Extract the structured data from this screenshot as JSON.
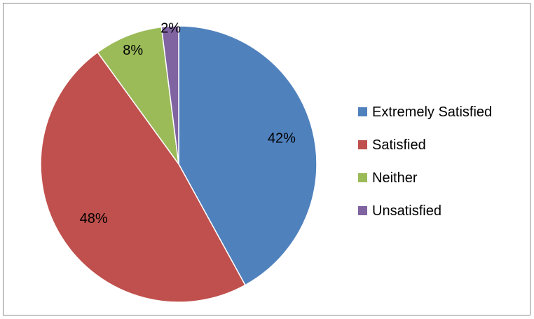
{
  "chart_data": {
    "type": "pie",
    "title": "",
    "categories": [
      "Extremely Satisfied",
      "Satisfied",
      "Neither",
      "Unsatisfied"
    ],
    "values": [
      42,
      48,
      8,
      2
    ],
    "labels": [
      "42%",
      "48%",
      "8%",
      "2%"
    ],
    "colors": [
      "#4F81BD",
      "#C0504D",
      "#9BBB59",
      "#8064A2"
    ],
    "start_angle": "12 o'clock",
    "direction": "clockwise",
    "legend": {
      "position": "right",
      "entries": [
        "Extremely Satisfied",
        "Satisfied",
        "Neither",
        "Unsatisfied"
      ]
    }
  }
}
